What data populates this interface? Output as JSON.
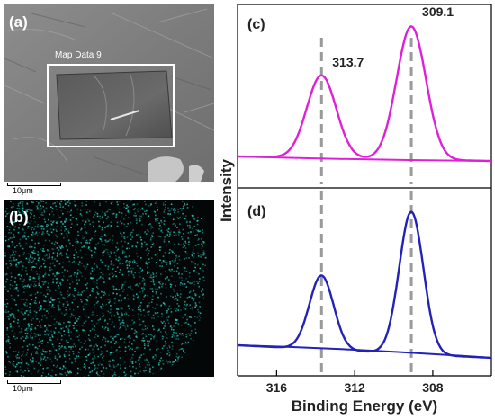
{
  "panel_a": {
    "label": "(a)",
    "roi_label": "Map Data 9",
    "scalebar": "10μm"
  },
  "panel_b": {
    "label": "(b)",
    "scalebar": "10μm",
    "map_color": "#2fd3c8"
  },
  "chart_data": [
    {
      "panel": "(c)",
      "type": "line",
      "xlabel": "Binding Energy (eV)",
      "ylabel": "Intensity",
      "xlim": [
        318,
        305
      ],
      "x_reversed": true,
      "xticks": [
        316,
        312,
        308
      ],
      "color": "#e020d8",
      "peaks": [
        {
          "label": "313.7",
          "position": 313.7,
          "relative_height": 0.62
        },
        {
          "label": "309.1",
          "position": 309.1,
          "relative_height": 1.0
        }
      ]
    },
    {
      "panel": "(d)",
      "type": "line",
      "xlabel": "Binding Energy (eV)",
      "ylabel": "Intensity",
      "xlim": [
        318,
        305
      ],
      "x_reversed": true,
      "xticks": [
        316,
        312,
        308
      ],
      "color": "#2222b8",
      "peaks": [
        {
          "label": "",
          "position": 313.7,
          "relative_height": 0.52
        },
        {
          "label": "",
          "position": 309.1,
          "relative_height": 1.0
        }
      ]
    }
  ]
}
